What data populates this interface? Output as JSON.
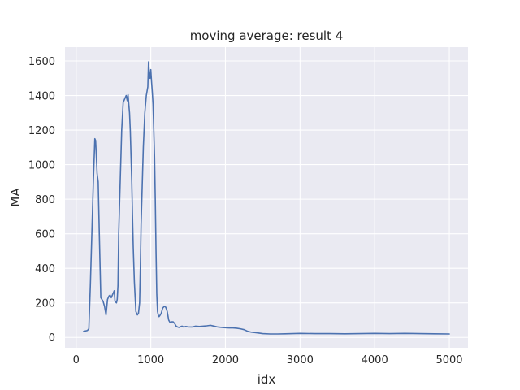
{
  "chart_data": {
    "type": "line",
    "title": "moving average: result 4",
    "xlabel": "idx",
    "ylabel": "MA",
    "xlim": [
      -150,
      5250
    ],
    "ylim": [
      -60,
      1680
    ],
    "xticks": [
      0,
      1000,
      2000,
      3000,
      4000,
      5000
    ],
    "yticks": [
      0,
      200,
      400,
      600,
      800,
      1000,
      1200,
      1400,
      1600
    ],
    "grid": true,
    "legend": false,
    "colors": {
      "background": "#eaeaf2",
      "grid": "#ffffff",
      "line": "#4c72b0"
    },
    "series": [
      {
        "x": [
          100,
          150,
          170,
          190,
          210,
          230,
          250,
          260,
          270,
          280,
          295,
          310,
          330,
          345,
          360,
          380,
          400,
          420,
          440,
          455,
          470,
          490,
          510,
          520,
          540,
          550,
          560,
          570,
          580,
          590,
          600,
          610,
          630,
          650,
          670,
          685,
          695,
          705,
          715,
          725,
          735,
          745,
          755,
          765,
          780,
          800,
          820,
          835,
          850,
          860,
          870,
          880,
          900,
          920,
          940,
          960,
          970,
          980,
          990,
          1000,
          1010,
          1020,
          1030,
          1040,
          1050,
          1060,
          1070,
          1080,
          1090,
          1100,
          1110,
          1120,
          1140,
          1160,
          1180,
          1200,
          1220,
          1240,
          1260,
          1280,
          1300,
          1320,
          1340,
          1360,
          1380,
          1400,
          1420,
          1440,
          1470,
          1500,
          1550,
          1600,
          1650,
          1700,
          1750,
          1800,
          1850,
          1900,
          1950,
          2000,
          2050,
          2100,
          2150,
          2200,
          2250,
          2300,
          2350,
          2400,
          2450,
          2500,
          2600,
          2700,
          2800,
          2900,
          3000,
          3200,
          3400,
          3600,
          3800,
          4000,
          4200,
          4400,
          4600,
          4800,
          5000
        ],
        "values": [
          35,
          40,
          50,
          300,
          600,
          900,
          1150,
          1140,
          1050,
          950,
          900,
          600,
          230,
          220,
          210,
          180,
          130,
          220,
          240,
          245,
          230,
          250,
          270,
          210,
          200,
          220,
          300,
          600,
          750,
          900,
          1050,
          1200,
          1360,
          1380,
          1400,
          1370,
          1405,
          1350,
          1300,
          1200,
          1050,
          900,
          700,
          520,
          320,
          150,
          130,
          140,
          200,
          400,
          650,
          800,
          1100,
          1300,
          1400,
          1450,
          1595,
          1520,
          1500,
          1550,
          1480,
          1420,
          1350,
          1200,
          1050,
          800,
          500,
          250,
          150,
          130,
          120,
          125,
          140,
          170,
          180,
          175,
          150,
          100,
          85,
          90,
          90,
          80,
          65,
          60,
          58,
          62,
          65,
          60,
          63,
          61,
          60,
          65,
          63,
          65,
          67,
          70,
          65,
          60,
          58,
          56,
          55,
          55,
          53,
          50,
          45,
          35,
          30,
          28,
          25,
          22,
          20,
          20,
          21,
          22,
          23,
          22,
          22,
          21,
          22,
          23,
          22,
          23,
          22,
          21,
          20
        ]
      }
    ]
  }
}
